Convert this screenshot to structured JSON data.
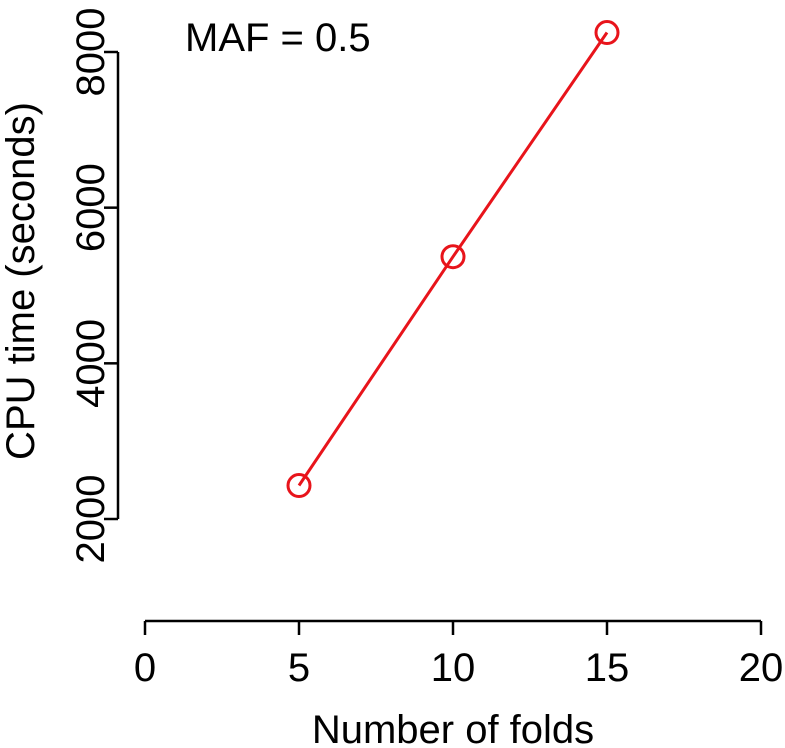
{
  "chart_data": {
    "type": "line",
    "xlabel": "Number of folds",
    "ylabel": "CPU time (seconds)",
    "annotation": "MAF = 0.5",
    "xlim": [
      0,
      20
    ],
    "ylim": [
      2000,
      8000
    ],
    "x_ticks": [
      0,
      5,
      10,
      15,
      20
    ],
    "y_ticks": [
      2000,
      4000,
      6000,
      8000
    ],
    "grid": false,
    "series": [
      {
        "x": [
          5,
          10,
          15
        ],
        "y": [
          2430,
          5370,
          8250
        ],
        "color": "#e8141b",
        "marker": "open-circle"
      }
    ]
  }
}
